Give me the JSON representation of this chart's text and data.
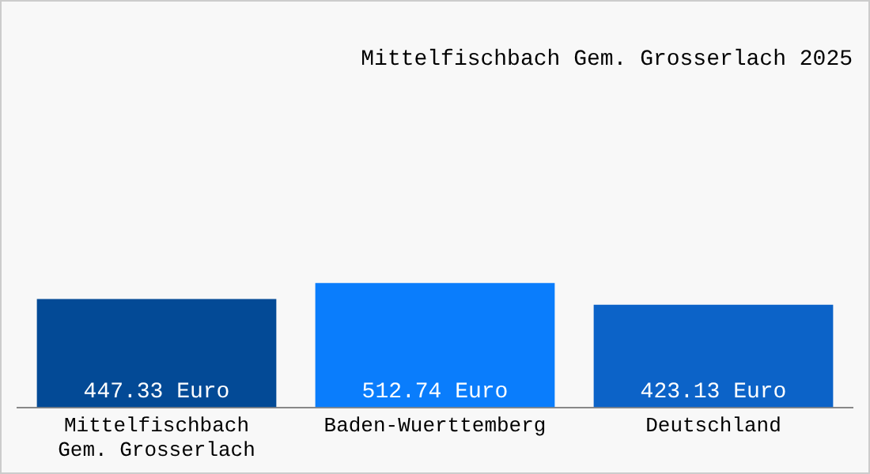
{
  "chart_data": {
    "type": "bar",
    "title": "Mittelfischbach Gem. Grosserlach 2025",
    "categories": [
      "Mittelfischbach Gem. Grosserlach",
      "Baden-Wuerttemberg",
      "Deutschland"
    ],
    "values": [
      447.33,
      512.74,
      423.13
    ],
    "colors": [
      "#034a96",
      "#0a7dfc",
      "#0c63c8"
    ],
    "value_labels": [
      "447.33 Euro",
      "512.74 Euro",
      "423.13 Euro"
    ],
    "grid": false,
    "legend": false
  }
}
